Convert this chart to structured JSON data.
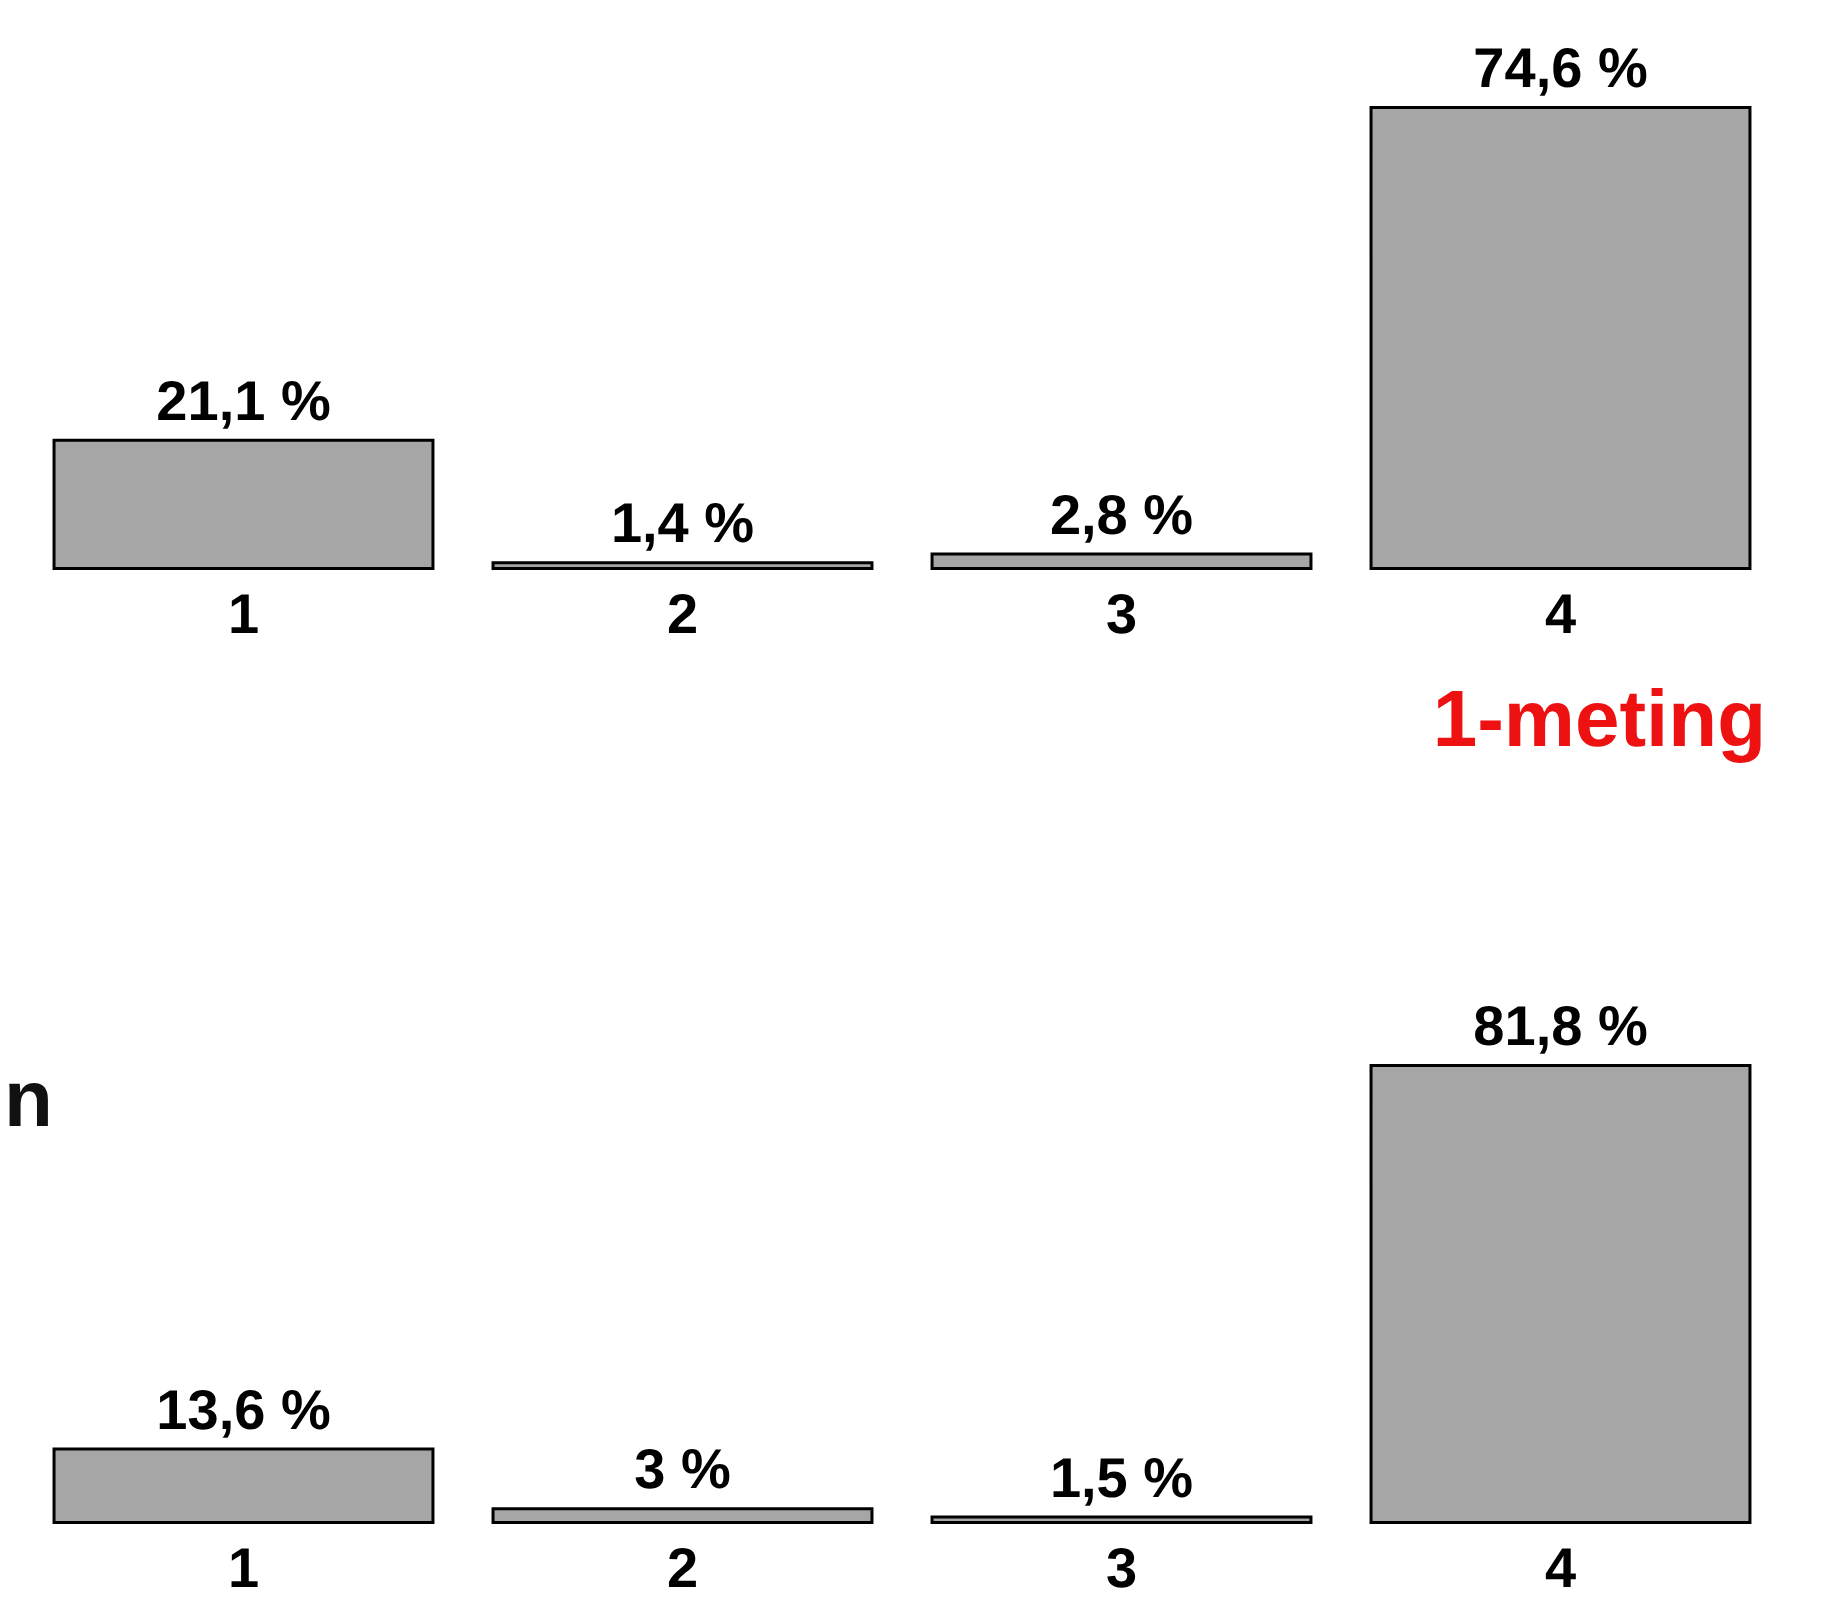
{
  "chart_data": [
    {
      "type": "bar",
      "categories": [
        "1",
        "2",
        "3",
        "4"
      ],
      "values": [
        21.1,
        1.4,
        2.8,
        74.6
      ],
      "value_labels": [
        "21,1 %",
        "1,4 %",
        "2,8 %",
        "74,6 %"
      ],
      "color": "#a6a6a6",
      "tick_labels": "x",
      "annotations": [
        "1-meting"
      ]
    },
    {
      "type": "bar",
      "categories": [
        "1",
        "2",
        "3",
        "4"
      ],
      "values": [
        13.6,
        3,
        1.5,
        81.8
      ],
      "value_labels": [
        "13,6 %",
        "3 %",
        "1,5 %",
        "81,8 %"
      ],
      "color": "#a6a6a6",
      "tick_labels": "x",
      "annotations": [
        "n"
      ]
    }
  ]
}
